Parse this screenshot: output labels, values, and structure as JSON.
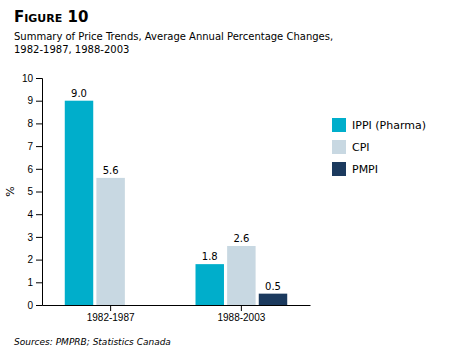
{
  "chart_data": {
    "type": "bar",
    "title": "Figure 10",
    "subtitle": "Summary of Price Trends, Average Annual Percentage Changes,\n1982-1987, 1988-2003",
    "y_label": "%",
    "source": "Sources: PMPRB; Statistics Canada",
    "categories": [
      "1982-1987",
      "1988-2003"
    ],
    "series": [
      {
        "name": "IPPI (Pharma)",
        "color": "#00AECB",
        "values": [
          9.0,
          1.8
        ],
        "value_labels": [
          "9.0",
          "1.8"
        ]
      },
      {
        "name": "CPI",
        "color": "#C8D8E2",
        "values": [
          5.6,
          2.6
        ],
        "value_labels": [
          "5.6",
          "2.6"
        ]
      },
      {
        "name": "PMPI",
        "color": "#1B3A5E",
        "values": [
          null,
          0.5
        ],
        "value_labels": [
          null,
          "0.5"
        ]
      }
    ],
    "ylim": [
      0,
      10
    ],
    "yticks": [
      0,
      1,
      2,
      3,
      4,
      5,
      6,
      7,
      8,
      9,
      10
    ],
    "grid": false,
    "legend": "right",
    "data_labels": true
  }
}
